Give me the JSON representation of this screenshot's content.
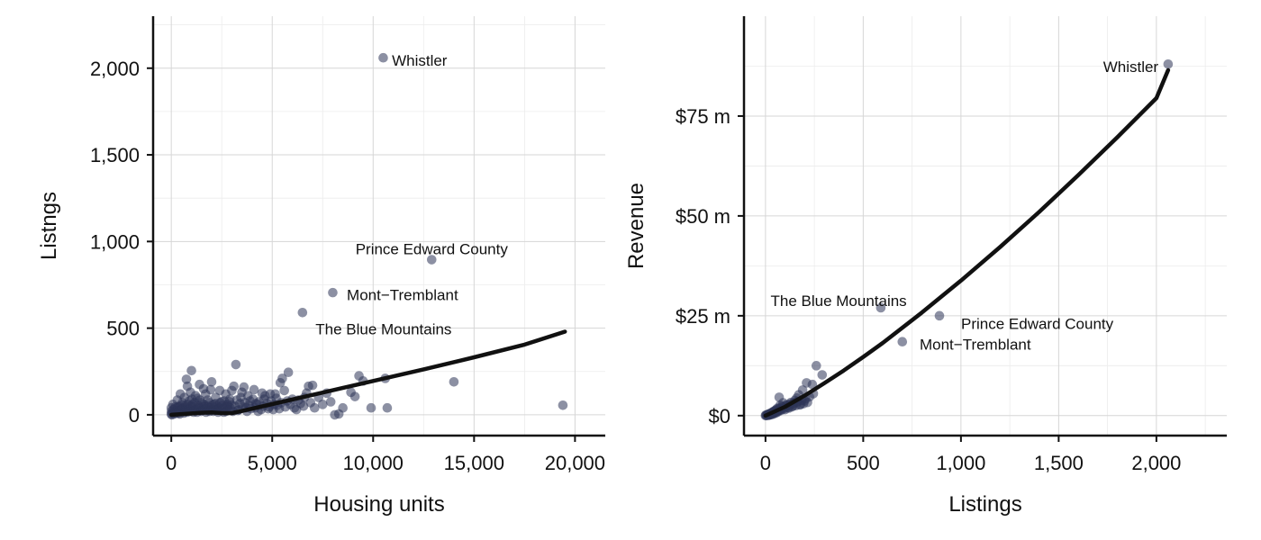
{
  "colors": {
    "point": "#2e3558",
    "fit": "#111111"
  },
  "chart_data": [
    {
      "type": "scatter",
      "xlabel": "Housing units",
      "ylabel": "Listngs",
      "xlim": [
        -900,
        21500
      ],
      "ylim": [
        -120,
        2300
      ],
      "xticks": [
        {
          "value": 0,
          "label": "0"
        },
        {
          "value": 5000,
          "label": "5,000"
        },
        {
          "value": 10000,
          "label": "10,000"
        },
        {
          "value": 15000,
          "label": "15,000"
        },
        {
          "value": 20000,
          "label": "20,000"
        }
      ],
      "yticks": [
        {
          "value": 0,
          "label": "0"
        },
        {
          "value": 500,
          "label": "500"
        },
        {
          "value": 1000,
          "label": "1,000"
        },
        {
          "value": 1500,
          "label": "1,500"
        },
        {
          "value": 2000,
          "label": "2,000"
        }
      ],
      "grid": true,
      "annotations": [
        {
          "text": "Whistler",
          "x": 10500,
          "y": 2060,
          "anchor": "start",
          "dx": 0.8,
          "dy": 0.3
        },
        {
          "text": "Prince Edward County",
          "x": 12900,
          "y": 895,
          "anchor": "middle",
          "dx": 0,
          "dy": -0.9
        },
        {
          "text": "Mont−Tremblant",
          "x": 8000,
          "y": 705,
          "anchor": "start",
          "dx": 1.3,
          "dy": 0.3
        },
        {
          "text": "The Blue Mountains",
          "x": 6500,
          "y": 590,
          "anchor": "start",
          "dx": 1.2,
          "dy": 1.6
        }
      ],
      "points": [
        [
          10500,
          2060
        ],
        [
          12900,
          895
        ],
        [
          8000,
          705
        ],
        [
          6500,
          590
        ],
        [
          19400,
          55
        ],
        [
          14000,
          190
        ],
        [
          10600,
          210
        ],
        [
          10700,
          40
        ],
        [
          9900,
          40
        ],
        [
          9300,
          225
        ],
        [
          9500,
          195
        ],
        [
          8900,
          130
        ],
        [
          9100,
          105
        ],
        [
          8500,
          40
        ],
        [
          8300,
          5
        ],
        [
          8100,
          0
        ],
        [
          7700,
          125
        ],
        [
          7900,
          75
        ],
        [
          7300,
          100
        ],
        [
          7000,
          170
        ],
        [
          6800,
          165
        ],
        [
          6700,
          125
        ],
        [
          6600,
          100
        ],
        [
          6400,
          65
        ],
        [
          6200,
          30
        ],
        [
          6000,
          90
        ],
        [
          5800,
          245
        ],
        [
          5600,
          140
        ],
        [
          5400,
          185
        ],
        [
          5500,
          210
        ],
        [
          5200,
          95
        ],
        [
          5100,
          60
        ],
        [
          4900,
          120
        ],
        [
          4800,
          35
        ],
        [
          4600,
          90
        ],
        [
          4500,
          125
        ],
        [
          4300,
          20
        ],
        [
          4200,
          65
        ],
        [
          4100,
          145
        ],
        [
          3900,
          80
        ],
        [
          3800,
          110
        ],
        [
          3700,
          40
        ],
        [
          3600,
          160
        ],
        [
          3500,
          130
        ],
        [
          3400,
          65
        ],
        [
          3300,
          25
        ],
        [
          3200,
          290
        ],
        [
          3100,
          165
        ],
        [
          3000,
          140
        ],
        [
          2900,
          90
        ],
        [
          2800,
          50
        ],
        [
          2700,
          120
        ],
        [
          2600,
          15
        ],
        [
          2500,
          75
        ],
        [
          2400,
          140
        ],
        [
          2300,
          35
        ],
        [
          2200,
          100
        ],
        [
          2100,
          60
        ],
        [
          2000,
          190
        ],
        [
          1950,
          145
        ],
        [
          1900,
          20
        ],
        [
          1800,
          85
        ],
        [
          1700,
          120
        ],
        [
          1650,
          50
        ],
        [
          1600,
          150
        ],
        [
          1500,
          70
        ],
        [
          1450,
          25
        ],
        [
          1400,
          175
        ],
        [
          1300,
          95
        ],
        [
          1250,
          40
        ],
        [
          1200,
          110
        ],
        [
          1100,
          15
        ],
        [
          1050,
          60
        ],
        [
          1000,
          255
        ],
        [
          950,
          130
        ],
        [
          900,
          80
        ],
        [
          850,
          30
        ],
        [
          800,
          165
        ],
        [
          750,
          205
        ],
        [
          700,
          55
        ],
        [
          650,
          100
        ],
        [
          600,
          20
        ],
        [
          550,
          70
        ],
        [
          500,
          35
        ],
        [
          450,
          120
        ],
        [
          400,
          50
        ],
        [
          350,
          10
        ],
        [
          300,
          85
        ],
        [
          250,
          25
        ],
        [
          200,
          45
        ],
        [
          150,
          5
        ],
        [
          100,
          30
        ],
        [
          80,
          60
        ],
        [
          50,
          10
        ],
        [
          30,
          0
        ],
        [
          10,
          20
        ],
        [
          0,
          5
        ],
        [
          0,
          40
        ],
        [
          120,
          15
        ],
        [
          180,
          35
        ],
        [
          260,
          10
        ],
        [
          320,
          45
        ],
        [
          380,
          20
        ],
        [
          420,
          5
        ],
        [
          480,
          30
        ],
        [
          520,
          55
        ],
        [
          580,
          40
        ],
        [
          620,
          10
        ],
        [
          680,
          25
        ],
        [
          720,
          45
        ],
        [
          780,
          15
        ],
        [
          820,
          60
        ],
        [
          880,
          35
        ],
        [
          920,
          20
        ],
        [
          980,
          50
        ],
        [
          1020,
          90
        ],
        [
          1080,
          45
        ],
        [
          1120,
          25
        ],
        [
          1160,
          70
        ],
        [
          1220,
          30
        ],
        [
          1280,
          15
        ],
        [
          1320,
          55
        ],
        [
          1380,
          40
        ],
        [
          1420,
          85
        ],
        [
          1480,
          20
        ],
        [
          1520,
          45
        ],
        [
          1580,
          30
        ],
        [
          1620,
          60
        ],
        [
          1680,
          35
        ],
        [
          1720,
          15
        ],
        [
          1780,
          50
        ],
        [
          1820,
          25
        ],
        [
          1880,
          70
        ],
        [
          1920,
          40
        ],
        [
          1980,
          30
        ],
        [
          2020,
          55
        ],
        [
          2080,
          20
        ],
        [
          2120,
          45
        ],
        [
          2180,
          65
        ],
        [
          2220,
          30
        ],
        [
          2280,
          50
        ],
        [
          2320,
          15
        ],
        [
          2380,
          40
        ],
        [
          2420,
          70
        ],
        [
          2480,
          25
        ],
        [
          2520,
          55
        ],
        [
          2580,
          35
        ],
        [
          2620,
          80
        ],
        [
          2680,
          45
        ],
        [
          2720,
          20
        ],
        [
          2780,
          60
        ],
        [
          2820,
          30
        ],
        [
          2880,
          75
        ],
        [
          2920,
          40
        ],
        [
          2980,
          55
        ],
        [
          3050,
          20
        ],
        [
          3150,
          50
        ],
        [
          3250,
          85
        ],
        [
          3350,
          30
        ],
        [
          3450,
          100
        ],
        [
          3550,
          45
        ],
        [
          3650,
          70
        ],
        [
          3750,
          20
        ],
        [
          3850,
          55
        ],
        [
          3950,
          35
        ],
        [
          4050,
          90
        ],
        [
          4150,
          40
        ],
        [
          4250,
          60
        ],
        [
          4350,
          75
        ],
        [
          4450,
          30
        ],
        [
          4550,
          50
        ],
        [
          4650,
          110
        ],
        [
          4750,
          65
        ],
        [
          4850,
          45
        ],
        [
          4950,
          80
        ],
        [
          5050,
          30
        ],
        [
          5150,
          120
        ],
        [
          5250,
          55
        ],
        [
          5350,
          35
        ],
        [
          5450,
          70
        ],
        [
          5650,
          45
        ],
        [
          5750,
          80
        ],
        [
          5900,
          60
        ],
        [
          6100,
          40
        ],
        [
          6300,
          85
        ],
        [
          6550,
          50
        ],
        [
          6900,
          70
        ],
        [
          7100,
          40
        ],
        [
          7500,
          60
        ]
      ],
      "fit": [
        [
          0,
          0
        ],
        [
          500,
          4
        ],
        [
          1000,
          8
        ],
        [
          1500,
          12
        ],
        [
          2000,
          14
        ],
        [
          2500,
          10
        ],
        [
          3000,
          10
        ],
        [
          3500,
          22
        ],
        [
          5000,
          62
        ],
        [
          7500,
          128
        ],
        [
          10000,
          195
        ],
        [
          12500,
          262
        ],
        [
          15000,
          332
        ],
        [
          17500,
          405
        ],
        [
          19500,
          480
        ]
      ]
    },
    {
      "type": "scatter",
      "xlabel": "Listings",
      "ylabel": "Revenue",
      "xlim": [
        -110,
        2360
      ],
      "ylim": [
        -5000000,
        100000000
      ],
      "xticks": [
        {
          "value": 0,
          "label": "0"
        },
        {
          "value": 500,
          "label": "500"
        },
        {
          "value": 1000,
          "label": "1,000"
        },
        {
          "value": 1500,
          "label": "1,500"
        },
        {
          "value": 2000,
          "label": "2,000"
        }
      ],
      "yticks": [
        {
          "value": 0,
          "label": "$0"
        },
        {
          "value": 25000000,
          "label": "$25 m"
        },
        {
          "value": 50000000,
          "label": "$50 m"
        },
        {
          "value": 75000000,
          "label": "$75 m"
        }
      ],
      "grid": true,
      "annotations": [
        {
          "text": "Whistler",
          "x": 2060,
          "y": 88000000,
          "anchor": "end",
          "dx": -0.9,
          "dy": 0.3
        },
        {
          "text": "The Blue Mountains",
          "x": 590,
          "y": 27000000,
          "anchor": "end",
          "dx": 2.4,
          "dy": -0.6
        },
        {
          "text": "Prince Edward County",
          "x": 890,
          "y": 25000000,
          "anchor": "start",
          "dx": 2.0,
          "dy": 0.8
        },
        {
          "text": "Mont−Tremblant",
          "x": 700,
          "y": 18500000,
          "anchor": "start",
          "dx": 1.6,
          "dy": 0.3
        }
      ],
      "points": [
        [
          2060,
          88000000
        ],
        [
          590,
          27000000
        ],
        [
          890,
          25000000
        ],
        [
          700,
          18500000
        ],
        [
          260,
          12500000
        ],
        [
          290,
          10200000
        ],
        [
          240,
          7800000
        ],
        [
          210,
          8200000
        ],
        [
          245,
          5500000
        ],
        [
          190,
          6400000
        ],
        [
          170,
          5200000
        ],
        [
          160,
          4400000
        ],
        [
          200,
          3700000
        ],
        [
          180,
          2800000
        ],
        [
          150,
          3800000
        ],
        [
          140,
          2400000
        ],
        [
          130,
          3300000
        ],
        [
          120,
          1900000
        ],
        [
          110,
          2700000
        ],
        [
          100,
          1500000
        ],
        [
          90,
          2200000
        ],
        [
          80,
          1300000
        ],
        [
          70,
          4600000
        ],
        [
          65,
          1000000
        ],
        [
          60,
          1800000
        ],
        [
          55,
          700000
        ],
        [
          50,
          1200000
        ],
        [
          45,
          500000
        ],
        [
          40,
          900000
        ],
        [
          35,
          300000
        ],
        [
          30,
          600000
        ],
        [
          25,
          200000
        ],
        [
          20,
          450000
        ],
        [
          15,
          100000
        ],
        [
          10,
          250000
        ],
        [
          5,
          50000
        ],
        [
          0,
          0
        ],
        [
          2,
          150000
        ],
        [
          8,
          50000
        ],
        [
          12,
          300000
        ],
        [
          18,
          150000
        ],
        [
          22,
          500000
        ],
        [
          28,
          350000
        ],
        [
          32,
          800000
        ],
        [
          38,
          600000
        ],
        [
          42,
          1100000
        ],
        [
          48,
          850000
        ],
        [
          52,
          1400000
        ],
        [
          58,
          1000000
        ],
        [
          62,
          1600000
        ],
        [
          68,
          1250000
        ],
        [
          72,
          1900000
        ],
        [
          78,
          1500000
        ],
        [
          85,
          2300000
        ],
        [
          95,
          1700000
        ],
        [
          105,
          2600000
        ],
        [
          115,
          2000000
        ],
        [
          125,
          2900000
        ],
        [
          135,
          2200000
        ],
        [
          145,
          3100000
        ],
        [
          155,
          2500000
        ],
        [
          165,
          3400000
        ],
        [
          175,
          2700000
        ],
        [
          185,
          3800000
        ],
        [
          195,
          3000000
        ],
        [
          205,
          4200000
        ],
        [
          215,
          3300000
        ],
        [
          225,
          4700000
        ],
        [
          20,
          200000
        ],
        [
          40,
          700000
        ],
        [
          60,
          1300000
        ],
        [
          80,
          1700000
        ],
        [
          100,
          2100000
        ],
        [
          120,
          2500000
        ],
        [
          140,
          3000000
        ],
        [
          160,
          3500000
        ],
        [
          75,
          2600000
        ],
        [
          90,
          3200000
        ]
      ],
      "fit": [
        [
          0,
          0
        ],
        [
          100,
          2200000
        ],
        [
          200,
          5000000
        ],
        [
          300,
          8100000
        ],
        [
          400,
          11300000
        ],
        [
          500,
          14700000
        ],
        [
          600,
          18200000
        ],
        [
          800,
          25800000
        ],
        [
          1000,
          33800000
        ],
        [
          1200,
          42200000
        ],
        [
          1400,
          51000000
        ],
        [
          1600,
          60200000
        ],
        [
          1800,
          69700000
        ],
        [
          2000,
          79500000
        ],
        [
          2060,
          86500000
        ]
      ]
    }
  ]
}
